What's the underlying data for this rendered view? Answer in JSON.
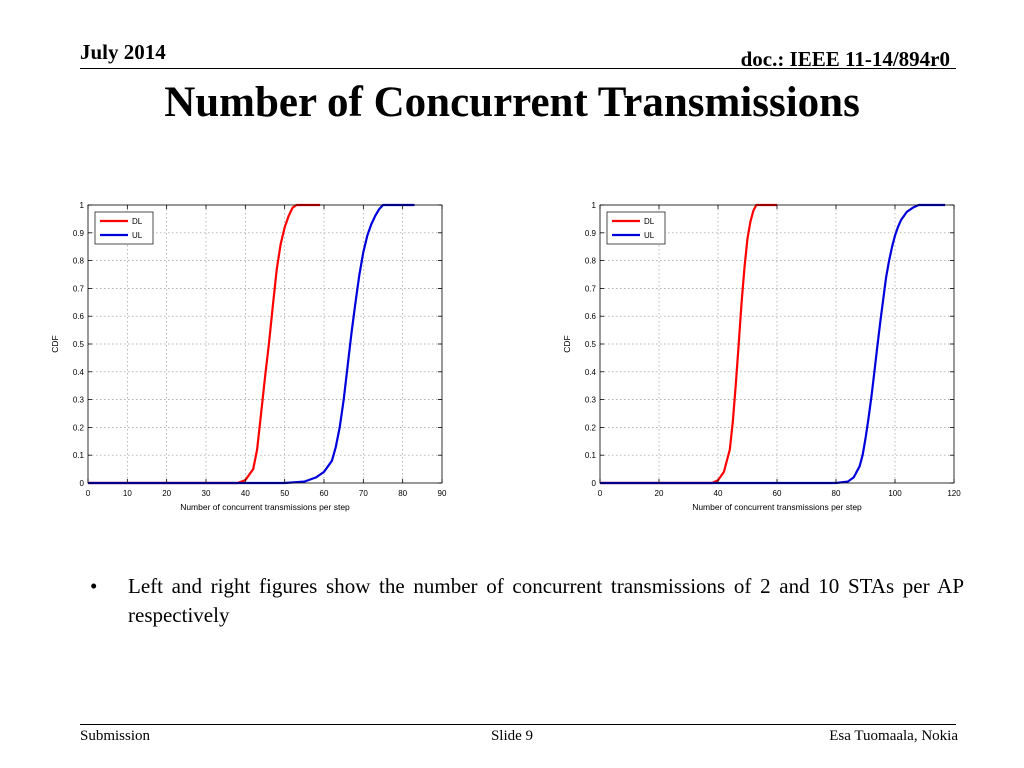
{
  "header": {
    "date": "July 2014",
    "doc": "doc.: IEEE 11-14/894r0"
  },
  "slide": {
    "title": "Number of Concurrent Transmissions",
    "bullet": "Left and right figures show the number of concurrent transmissions of 2 and 10 STAs per AP respectively"
  },
  "footer": {
    "left": "Submission",
    "center": "Slide 9",
    "right": "Esa Tuomaala, Nokia"
  },
  "colors": {
    "dl": "#ff0000",
    "ul": "#0000dd"
  },
  "chart_data": [
    {
      "type": "line",
      "title": "",
      "xlabel": "Number of concurrent transmissions per step",
      "ylabel": "CDF",
      "xlim": [
        0,
        90
      ],
      "ylim": [
        0,
        1
      ],
      "xticks": [
        0,
        10,
        20,
        30,
        40,
        50,
        60,
        70,
        80,
        90
      ],
      "yticks": [
        0,
        0.1,
        0.2,
        0.3,
        0.4,
        0.5,
        0.6,
        0.7,
        0.8,
        0.9,
        1
      ],
      "ytick_labels": [
        "0",
        "0.1",
        "0.2",
        "0.3",
        "0.4",
        "0.5",
        "0.6",
        "0.7",
        "0.8",
        "0.9",
        "1"
      ],
      "grid": true,
      "legend": "top-left",
      "series": [
        {
          "name": "DL",
          "color": "#ff0000",
          "x": [
            0,
            38,
            40,
            42,
            43,
            44,
            45,
            46,
            47,
            48,
            49,
            50,
            51,
            52,
            53,
            54,
            55,
            59
          ],
          "y": [
            0,
            0,
            0.01,
            0.05,
            0.12,
            0.25,
            0.38,
            0.5,
            0.64,
            0.77,
            0.86,
            0.92,
            0.96,
            0.99,
            1.0,
            1.0,
            1.0,
            1.0
          ]
        },
        {
          "name": "UL",
          "color": "#0000dd",
          "x": [
            0,
            50,
            55,
            58,
            60,
            62,
            63,
            64,
            65,
            66,
            67,
            68,
            69,
            70,
            71,
            72,
            73,
            74,
            75,
            77,
            80,
            83
          ],
          "y": [
            0,
            0,
            0.005,
            0.02,
            0.04,
            0.08,
            0.13,
            0.2,
            0.3,
            0.42,
            0.54,
            0.65,
            0.75,
            0.83,
            0.89,
            0.93,
            0.96,
            0.985,
            1.0,
            1.0,
            1.0,
            1.0
          ]
        }
      ]
    },
    {
      "type": "line",
      "title": "",
      "xlabel": "Number of concurrent transmissions per step",
      "ylabel": "CDF",
      "xlim": [
        0,
        120
      ],
      "ylim": [
        0,
        1
      ],
      "xticks": [
        0,
        20,
        40,
        60,
        80,
        100,
        120
      ],
      "yticks": [
        0,
        0.1,
        0.2,
        0.3,
        0.4,
        0.5,
        0.6,
        0.7,
        0.8,
        0.9,
        1
      ],
      "ytick_labels": [
        "0",
        "0.1",
        "0.2",
        "0.3",
        "0.4",
        "0.5",
        "0.6",
        "0.7",
        "0.8",
        "0.9",
        "1"
      ],
      "grid": true,
      "legend": "top-left",
      "series": [
        {
          "name": "DL",
          "color": "#ff0000",
          "x": [
            0,
            38,
            40,
            42,
            44,
            45,
            46,
            47,
            48,
            49,
            50,
            51,
            52,
            53,
            54,
            55,
            60
          ],
          "y": [
            0,
            0,
            0.01,
            0.04,
            0.12,
            0.22,
            0.35,
            0.5,
            0.65,
            0.78,
            0.88,
            0.94,
            0.98,
            1.0,
            1.0,
            1.0,
            1.0
          ]
        },
        {
          "name": "UL",
          "color": "#0000dd",
          "x": [
            0,
            80,
            84,
            86,
            88,
            89,
            90,
            91,
            92,
            93,
            94,
            95,
            96,
            97,
            98,
            99,
            100,
            101,
            102,
            104,
            106,
            108,
            110,
            117
          ],
          "y": [
            0,
            0,
            0.005,
            0.02,
            0.06,
            0.1,
            0.16,
            0.23,
            0.31,
            0.4,
            0.49,
            0.58,
            0.66,
            0.74,
            0.8,
            0.85,
            0.89,
            0.92,
            0.945,
            0.975,
            0.99,
            1.0,
            1.0,
            1.0
          ]
        }
      ]
    }
  ]
}
